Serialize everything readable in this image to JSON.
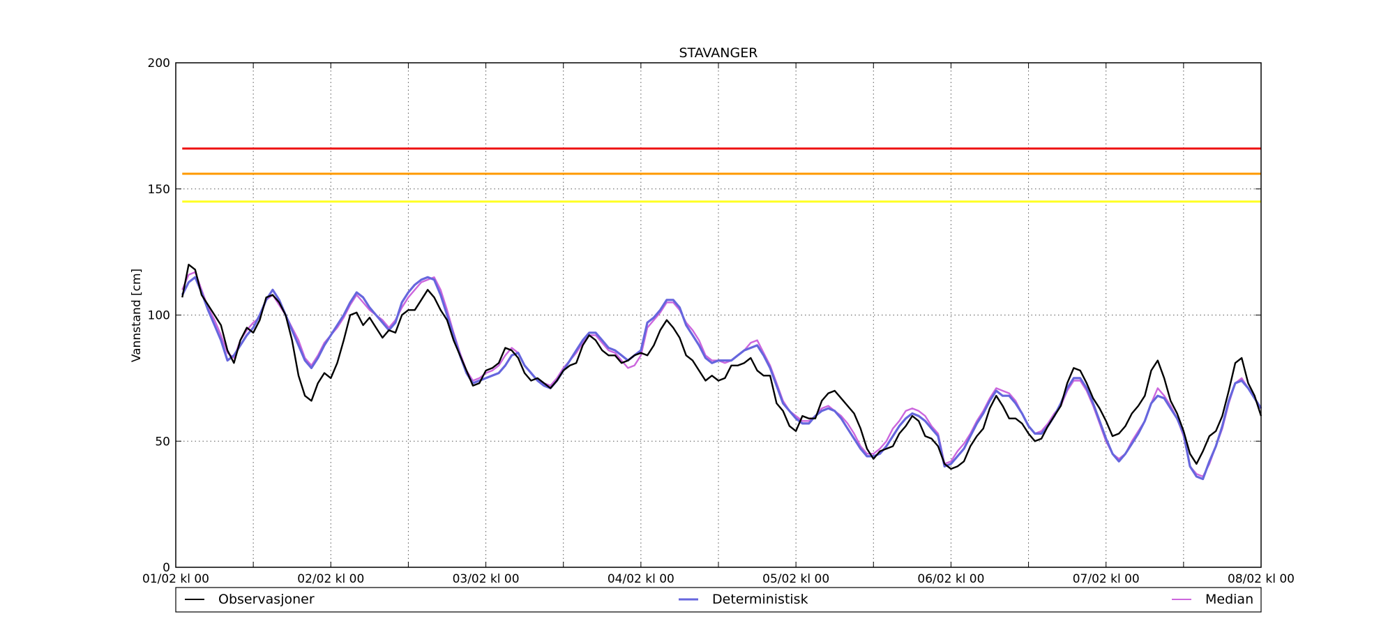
{
  "chart_data": {
    "type": "line",
    "title": "STAVANGER",
    "ylabel": "Vannstand [cm]",
    "xlabel": "",
    "ylim": [
      0,
      200
    ],
    "xlim": [
      0,
      168
    ],
    "grid": true,
    "legend_position": "bottom",
    "x_tick_labels": [
      "01/02 kl 00",
      "02/02 kl 00",
      "03/02 kl 00",
      "04/02 kl 00",
      "05/02 kl 00",
      "06/02 kl 00",
      "07/02 kl 00",
      "08/02 kl 00"
    ],
    "y_tick_labels": [
      "0",
      "50",
      "100",
      "150",
      "200"
    ],
    "thresholds": [
      {
        "value": 166,
        "color": "#ee1111"
      },
      {
        "value": 156,
        "color": "#ff9900"
      },
      {
        "value": 145,
        "color": "#ffff22"
      }
    ],
    "series": [
      {
        "name": "Observasjoner",
        "color": "#000000",
        "x": [
          1,
          2,
          3,
          4,
          5,
          6,
          7,
          8,
          9,
          10,
          11,
          12,
          13,
          14,
          15,
          16,
          17,
          18,
          19,
          20,
          21,
          22,
          23,
          24,
          25,
          26,
          27,
          28,
          29,
          30,
          31,
          32,
          33,
          34,
          35,
          36,
          37,
          38,
          39,
          40,
          41,
          42,
          43,
          44,
          45,
          46,
          47,
          48,
          49,
          50,
          51,
          52,
          53,
          54,
          55,
          56,
          57,
          58,
          59,
          60,
          61,
          62,
          63,
          64,
          65,
          66,
          67,
          68,
          69,
          70,
          71,
          72,
          73,
          74,
          75,
          76,
          77,
          78,
          79,
          80,
          81,
          82,
          83,
          84,
          85,
          86,
          87,
          88,
          89,
          90,
          91,
          92,
          93,
          94,
          95,
          96,
          97,
          98,
          99,
          100,
          101,
          102,
          103,
          104,
          105,
          106,
          107,
          108,
          109,
          110,
          111,
          112,
          113,
          114,
          115,
          116,
          117,
          118,
          119,
          120,
          121,
          122,
          123,
          124,
          125,
          126,
          127,
          128,
          129,
          130,
          131,
          132,
          133,
          134,
          135,
          136,
          137,
          138,
          139,
          140,
          141,
          142,
          143,
          144,
          145,
          146,
          147,
          148,
          149,
          150,
          151,
          152,
          153,
          154,
          155,
          156,
          157,
          158,
          159,
          160,
          161,
          162,
          163,
          164,
          165,
          166,
          167,
          168
        ],
        "values": [
          107,
          120,
          118,
          108,
          104,
          100,
          96,
          86,
          81,
          90,
          95,
          93,
          98,
          107,
          108,
          105,
          100,
          90,
          76,
          68,
          66,
          73,
          77,
          75,
          81,
          90,
          100,
          101,
          96,
          99,
          95,
          91,
          94,
          93,
          100,
          102,
          102,
          106,
          110,
          107,
          102,
          98,
          90,
          84,
          78,
          72,
          73,
          78,
          79,
          81,
          87,
          86,
          83,
          77,
          74,
          75,
          73,
          71,
          74,
          78,
          80,
          81,
          88,
          92,
          90,
          86,
          84,
          84,
          81,
          82,
          84,
          85,
          84,
          88,
          94,
          98,
          95,
          91,
          84,
          82,
          78,
          74,
          76,
          74,
          75,
          80,
          80,
          81,
          83,
          78,
          76,
          76,
          65,
          62,
          56,
          54,
          60,
          59,
          59,
          66,
          69,
          70,
          67,
          64,
          61,
          55,
          47,
          43,
          46,
          47,
          48,
          53,
          56,
          60,
          58,
          52,
          51,
          48,
          41,
          39,
          40,
          42,
          48,
          52,
          55,
          63,
          68,
          64,
          59,
          59,
          57,
          53,
          50,
          51,
          56,
          60,
          64,
          73,
          79,
          78,
          73,
          67,
          63,
          58,
          52,
          53,
          56,
          61,
          64,
          68,
          78,
          82,
          75,
          66,
          61,
          54,
          45,
          41,
          46,
          52,
          54,
          60,
          70,
          81,
          83,
          73,
          68,
          60
        ]
      },
      {
        "name": "Deterministisk",
        "color": "#6666dd",
        "x": [
          1,
          2,
          3,
          4,
          5,
          6,
          7,
          8,
          9,
          10,
          11,
          12,
          13,
          14,
          15,
          16,
          17,
          18,
          19,
          20,
          21,
          22,
          23,
          24,
          25,
          26,
          27,
          28,
          29,
          30,
          31,
          32,
          33,
          34,
          35,
          36,
          37,
          38,
          39,
          40,
          41,
          42,
          43,
          44,
          45,
          46,
          47,
          48,
          49,
          50,
          51,
          52,
          53,
          54,
          55,
          56,
          57,
          58,
          59,
          60,
          61,
          62,
          63,
          64,
          65,
          66,
          67,
          68,
          69,
          70,
          71,
          72,
          73,
          74,
          75,
          76,
          77,
          78,
          79,
          80,
          81,
          82,
          83,
          84,
          85,
          86,
          87,
          88,
          89,
          90,
          91,
          92,
          93,
          94,
          95,
          96,
          97,
          98,
          99,
          100,
          101,
          102,
          103,
          104,
          105,
          106,
          107,
          108,
          109,
          110,
          111,
          112,
          113,
          114,
          115,
          116,
          117,
          118,
          119,
          120,
          121,
          122,
          123,
          124,
          125,
          126,
          127,
          128,
          129,
          130,
          131,
          132,
          133,
          134,
          135,
          136,
          137,
          138,
          139,
          140,
          141,
          142,
          143,
          144,
          145,
          146,
          147,
          148,
          149,
          150,
          151,
          152,
          153,
          154,
          155,
          156,
          157,
          158,
          159,
          160,
          161,
          162,
          163,
          164,
          165,
          166,
          167,
          168
        ],
        "values": [
          108,
          113,
          115,
          109,
          102,
          96,
          90,
          82,
          84,
          88,
          92,
          95,
          100,
          106,
          110,
          106,
          100,
          94,
          88,
          82,
          79,
          83,
          88,
          92,
          96,
          100,
          105,
          109,
          107,
          103,
          100,
          97,
          94,
          97,
          105,
          109,
          112,
          114,
          115,
          114,
          108,
          100,
          92,
          84,
          77,
          73,
          74,
          75,
          76,
          77,
          80,
          84,
          85,
          80,
          77,
          74,
          72,
          71,
          74,
          78,
          82,
          86,
          90,
          93,
          93,
          90,
          87,
          86,
          84,
          82,
          84,
          86,
          97,
          99,
          102,
          106,
          106,
          103,
          96,
          92,
          88,
          83,
          81,
          82,
          82,
          82,
          84,
          86,
          87,
          88,
          84,
          79,
          72,
          65,
          62,
          59,
          57,
          57,
          60,
          62,
          63,
          62,
          59,
          55,
          51,
          47,
          44,
          44,
          45,
          48,
          52,
          56,
          59,
          61,
          60,
          58,
          55,
          52,
          40,
          41,
          44,
          47,
          52,
          57,
          61,
          66,
          70,
          68,
          68,
          65,
          61,
          56,
          53,
          53,
          56,
          60,
          65,
          71,
          75,
          75,
          71,
          65,
          58,
          51,
          45,
          42,
          45,
          49,
          53,
          58,
          65,
          68,
          67,
          63,
          59,
          53,
          40,
          36,
          35,
          42,
          48,
          56,
          66,
          73,
          74,
          71,
          67,
          63
        ]
      },
      {
        "name": "Median",
        "color": "#cc66dd",
        "x": [
          1,
          2,
          3,
          4,
          5,
          6,
          7,
          8,
          9,
          10,
          11,
          12,
          13,
          14,
          15,
          16,
          17,
          18,
          19,
          20,
          21,
          22,
          23,
          24,
          25,
          26,
          27,
          28,
          29,
          30,
          31,
          32,
          33,
          34,
          35,
          36,
          37,
          38,
          39,
          40,
          41,
          42,
          43,
          44,
          45,
          46,
          47,
          48,
          49,
          50,
          51,
          52,
          53,
          54,
          55,
          56,
          57,
          58,
          59,
          60,
          61,
          62,
          63,
          64,
          65,
          66,
          67,
          68,
          69,
          70,
          71,
          72,
          73,
          74,
          75,
          76,
          77,
          78,
          79,
          80,
          81,
          82,
          83,
          84,
          85,
          86,
          87,
          88,
          89,
          90,
          91,
          92,
          93,
          94,
          95,
          96,
          97,
          98,
          99,
          100,
          101,
          102,
          103,
          104,
          105,
          106,
          107,
          108,
          109,
          110,
          111,
          112,
          113,
          114,
          115,
          116,
          117,
          118,
          119,
          120,
          121,
          122,
          123,
          124,
          125,
          126,
          127,
          128,
          129,
          130,
          131,
          132,
          133,
          134,
          135,
          136,
          137,
          138,
          139,
          140,
          141,
          142,
          143,
          144,
          145,
          146,
          147,
          148,
          149,
          150,
          151,
          152,
          153,
          154,
          155,
          156,
          157,
          158,
          159,
          160,
          161,
          162,
          163,
          164,
          165,
          166,
          167,
          168
        ],
        "values": [
          110,
          116,
          117,
          110,
          103,
          98,
          92,
          85,
          83,
          90,
          94,
          97,
          99,
          106,
          108,
          104,
          100,
          95,
          90,
          83,
          80,
          84,
          89,
          92,
          95,
          99,
          104,
          108,
          105,
          102,
          100,
          98,
          95,
          98,
          103,
          107,
          110,
          113,
          114,
          115,
          110,
          102,
          93,
          85,
          78,
          74,
          75,
          77,
          78,
          80,
          84,
          87,
          85,
          80,
          77,
          74,
          73,
          72,
          75,
          79,
          82,
          85,
          89,
          92,
          92,
          89,
          86,
          85,
          82,
          79,
          80,
          84,
          95,
          98,
          101,
          105,
          105,
          102,
          97,
          94,
          90,
          84,
          82,
          82,
          81,
          82,
          84,
          86,
          89,
          90,
          85,
          80,
          73,
          66,
          62,
          60,
          58,
          58,
          60,
          63,
          64,
          62,
          60,
          57,
          53,
          48,
          45,
          45,
          47,
          50,
          55,
          58,
          62,
          63,
          62,
          60,
          56,
          53,
          41,
          42,
          46,
          49,
          53,
          58,
          62,
          67,
          71,
          70,
          69,
          66,
          61,
          56,
          53,
          54,
          57,
          61,
          64,
          70,
          74,
          74,
          70,
          64,
          57,
          50,
          45,
          43,
          45,
          50,
          54,
          58,
          65,
          71,
          68,
          64,
          59,
          52,
          40,
          37,
          36,
          41,
          48,
          55,
          65,
          73,
          75,
          71,
          67,
          63
        ]
      }
    ]
  }
}
